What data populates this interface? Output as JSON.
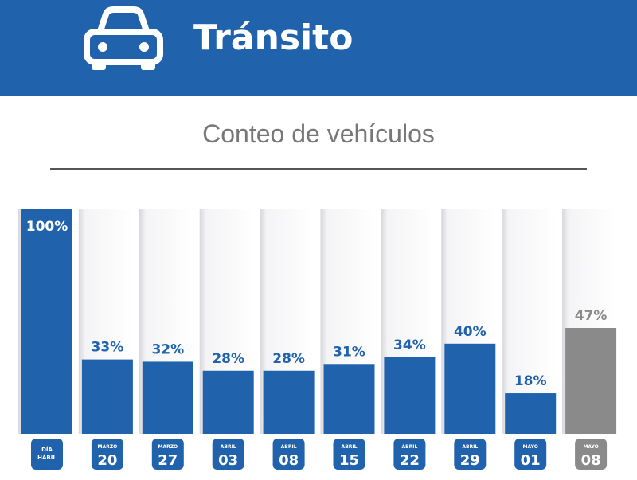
{
  "header": {
    "title": "Tránsito",
    "icon": "car-icon"
  },
  "subtitle": "Conteo de vehículos",
  "colors": {
    "header": "#2162ad",
    "bar": "#2162ad",
    "highlight": "#8a8a8a"
  },
  "chart_data": {
    "type": "bar",
    "categories": [
      {
        "top": "DÍA",
        "bottom": "HÁBIL"
      },
      {
        "top": "MARZO",
        "bottom": "20"
      },
      {
        "top": "MARZO",
        "bottom": "27"
      },
      {
        "top": "ABRIL",
        "bottom": "03"
      },
      {
        "top": "ABRIL",
        "bottom": "08"
      },
      {
        "top": "ABRIL",
        "bottom": "15"
      },
      {
        "top": "ABRIL",
        "bottom": "22"
      },
      {
        "top": "ABRIL",
        "bottom": "29"
      },
      {
        "top": "MAYO",
        "bottom": "01"
      },
      {
        "top": "MAYO",
        "bottom": "08"
      }
    ],
    "values": [
      100,
      33,
      32,
      28,
      28,
      31,
      34,
      40,
      18,
      47
    ],
    "labels": [
      "100%",
      "33%",
      "32%",
      "28%",
      "28%",
      "31%",
      "34%",
      "40%",
      "18%",
      "47%"
    ],
    "highlight_index": 9,
    "ylim": [
      0,
      100
    ]
  }
}
